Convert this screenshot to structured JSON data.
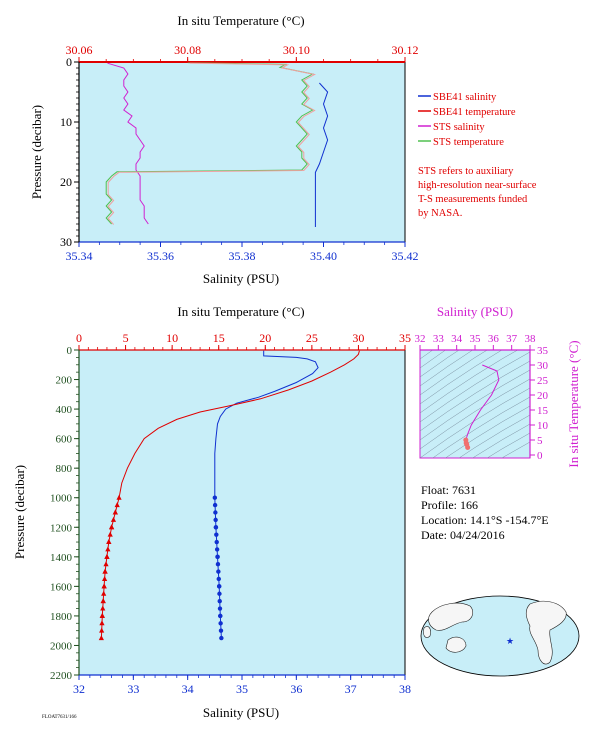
{
  "colors": {
    "red": "#e00000",
    "blue": "#1030d0",
    "magenta": "#d020d0",
    "green": "#50c050",
    "pink": "#f0a0a0",
    "dark_green": "#205020",
    "panel_bg": "#c8eef8",
    "black": "#000000"
  },
  "chart_data": [
    {
      "type": "line",
      "title": "",
      "top_axis_label": "In situ Temperature (°C)",
      "top_axis_range": [
        30.06,
        30.12
      ],
      "top_ticks": [
        "30.06",
        "30.08",
        "30.10",
        "30.12"
      ],
      "xlabel": "Salinity (PSU)",
      "xlim": [
        35.34,
        35.42
      ],
      "x_ticks": [
        "35.34",
        "35.36",
        "35.38",
        "35.40",
        "35.42"
      ],
      "ylabel": "Pressure (decibar)",
      "ylim": [
        30,
        0
      ],
      "y_ticks": [
        "0",
        "10",
        "20",
        "30"
      ],
      "grid": false,
      "legend_placement": "right",
      "legend": [
        {
          "name": "SBE41 salinity",
          "color": "#1030d0"
        },
        {
          "name": "SBE41 temperature",
          "color": "#e00000"
        },
        {
          "name": "STS salinity",
          "color": "#d020d0"
        },
        {
          "name": "STS temperature",
          "color": "#50c050"
        }
      ],
      "note": "STS refers to auxiliary high-resolution near-surface T-S measurements funded by NASA.",
      "series": [
        {
          "name": "SBE41 salinity",
          "axis": "salinity",
          "points": [
            [
              35.399,
              3.5
            ],
            [
              35.401,
              5
            ],
            [
              35.4,
              7
            ],
            [
              35.401,
              9
            ],
            [
              35.4,
              11
            ],
            [
              35.401,
              13
            ],
            [
              35.4,
              15
            ],
            [
              35.399,
              17
            ],
            [
              35.398,
              18.4
            ],
            [
              35.398,
              20
            ],
            [
              35.398,
              22
            ],
            [
              35.398,
              24
            ],
            [
              35.398,
              26
            ],
            [
              35.398,
              27.5
            ]
          ]
        },
        {
          "name": "SBE41 temperature",
          "axis": "temperature",
          "points": [
            [
              30.06,
              0
            ],
            [
              30.12,
              0
            ]
          ]
        },
        {
          "name": "STS salinity",
          "axis": "salinity",
          "points": [
            [
              35.347,
              0.2
            ],
            [
              35.351,
              1
            ],
            [
              35.352,
              2
            ],
            [
              35.351,
              3
            ],
            [
              35.351,
              4
            ],
            [
              35.352,
              5
            ],
            [
              35.351,
              6
            ],
            [
              35.352,
              7
            ],
            [
              35.351,
              8
            ],
            [
              35.353,
              9
            ],
            [
              35.352,
              10
            ],
            [
              35.354,
              11
            ],
            [
              35.354,
              12
            ],
            [
              35.355,
              13
            ],
            [
              35.356,
              14
            ],
            [
              35.355,
              15
            ],
            [
              35.355,
              16
            ],
            [
              35.354,
              17
            ],
            [
              35.354,
              18
            ],
            [
              35.355,
              19
            ],
            [
              35.355,
              20
            ],
            [
              35.355,
              21
            ],
            [
              35.355,
              22
            ],
            [
              35.355,
              23
            ],
            [
              35.356,
              24
            ],
            [
              35.356,
              25
            ],
            [
              35.356,
              26
            ],
            [
              35.357,
              27
            ]
          ]
        },
        {
          "name": "STS temperature",
          "axis": "temperature",
          "points": [
            [
              30.08,
              0.1
            ],
            [
              30.098,
              0.4
            ],
            [
              30.097,
              0.9
            ],
            [
              30.103,
              2
            ],
            [
              30.101,
              3
            ],
            [
              30.102,
              4
            ],
            [
              30.101,
              5
            ],
            [
              30.102,
              6
            ],
            [
              30.101,
              7
            ],
            [
              30.103,
              8
            ],
            [
              30.101,
              9
            ],
            [
              30.1,
              10
            ],
            [
              30.101,
              11
            ],
            [
              30.102,
              12
            ],
            [
              30.101,
              13
            ],
            [
              30.1,
              14
            ],
            [
              30.101,
              15
            ],
            [
              30.101,
              16
            ],
            [
              30.102,
              17
            ],
            [
              30.101,
              18
            ],
            [
              30.067,
              18.3
            ],
            [
              30.066,
              19
            ],
            [
              30.065,
              20
            ],
            [
              30.065,
              21
            ],
            [
              30.065,
              22
            ],
            [
              30.066,
              23
            ],
            [
              30.065,
              24
            ],
            [
              30.066,
              25
            ],
            [
              30.065,
              26
            ],
            [
              30.066,
              27
            ]
          ]
        }
      ]
    },
    {
      "type": "line",
      "title": "",
      "top_axis_label": "In situ Temperature (°C)",
      "top_axis_range": [
        0,
        35
      ],
      "top_ticks": [
        "0",
        "5",
        "10",
        "15",
        "20",
        "25",
        "30",
        "35"
      ],
      "xlabel": "Salinity (PSU)",
      "xlim": [
        32,
        38
      ],
      "x_ticks": [
        "32",
        "33",
        "34",
        "35",
        "36",
        "37",
        "38"
      ],
      "ylabel": "Pressure (decibar)",
      "ylim": [
        2200,
        0
      ],
      "y_ticks": [
        "0",
        "200",
        "400",
        "600",
        "800",
        "1000",
        "1200",
        "1400",
        "1600",
        "1800",
        "2000",
        "2200"
      ],
      "grid": false,
      "series": [
        {
          "name": "Salinity",
          "axis": "salinity",
          "points": [
            [
              35.4,
              5
            ],
            [
              35.4,
              40
            ],
            [
              36.0,
              50
            ],
            [
              36.2,
              60
            ],
            [
              36.35,
              80
            ],
            [
              36.4,
              120
            ],
            [
              36.3,
              160
            ],
            [
              36.0,
              220
            ],
            [
              35.6,
              280
            ],
            [
              35.3,
              320
            ],
            [
              34.9,
              360
            ],
            [
              34.7,
              400
            ],
            [
              34.6,
              450
            ],
            [
              34.55,
              500
            ],
            [
              34.52,
              600
            ],
            [
              34.5,
              700
            ],
            [
              34.5,
              800
            ],
            [
              34.5,
              900
            ],
            [
              34.5,
              1000
            ],
            [
              34.52,
              1200
            ],
            [
              34.55,
              1400
            ],
            [
              34.58,
              1600
            ],
            [
              34.6,
              1800
            ],
            [
              34.62,
              1950
            ]
          ]
        },
        {
          "name": "Temperature",
          "axis": "temperature",
          "points": [
            [
              30.1,
              5
            ],
            [
              30.0,
              30
            ],
            [
              29.5,
              60
            ],
            [
              28.5,
              100
            ],
            [
              27.0,
              150
            ],
            [
              25.0,
              210
            ],
            [
              22.5,
              270
            ],
            [
              19.5,
              330
            ],
            [
              16.0,
              380
            ],
            [
              13.0,
              420
            ],
            [
              10.5,
              470
            ],
            [
              8.5,
              530
            ],
            [
              7.0,
              600
            ],
            [
              6.0,
              700
            ],
            [
              5.2,
              800
            ],
            [
              4.6,
              900
            ],
            [
              4.3,
              1000
            ],
            [
              3.9,
              1100
            ],
            [
              3.5,
              1200
            ],
            [
              3.2,
              1300
            ],
            [
              3.0,
              1400
            ],
            [
              2.8,
              1500
            ],
            [
              2.7,
              1600
            ],
            [
              2.6,
              1700
            ],
            [
              2.5,
              1800
            ],
            [
              2.4,
              1950
            ]
          ]
        }
      ]
    },
    {
      "type": "scatter",
      "title": "",
      "top_axis_label": "Salinity (PSU)",
      "x_ticks": [
        "32",
        "33",
        "34",
        "35",
        "36",
        "37",
        "38"
      ],
      "xlim": [
        32,
        38
      ],
      "ylabel": "In situ Temperature (°C)",
      "ylim": [
        -1,
        35
      ],
      "y_ticks": [
        "0",
        "5",
        "10",
        "15",
        "20",
        "25",
        "30",
        "35"
      ],
      "grid": false,
      "series": [
        {
          "name": "T-S",
          "points": [
            [
              35.4,
              30
            ],
            [
              36.2,
              28
            ],
            [
              36.3,
              25
            ],
            [
              35.9,
              20
            ],
            [
              35.3,
              15
            ],
            [
              34.8,
              10
            ],
            [
              34.6,
              7
            ],
            [
              34.5,
              5
            ],
            [
              34.52,
              4
            ],
            [
              34.55,
              3.5
            ],
            [
              34.6,
              2.5
            ]
          ]
        }
      ]
    }
  ],
  "info": {
    "float": "Float:  7631",
    "profile": "Profile:  166",
    "location": "Location:  14.1°S  -154.7°E",
    "date": "Date:  04/24/2016"
  },
  "footer_tag": "FLOAT7631/166"
}
